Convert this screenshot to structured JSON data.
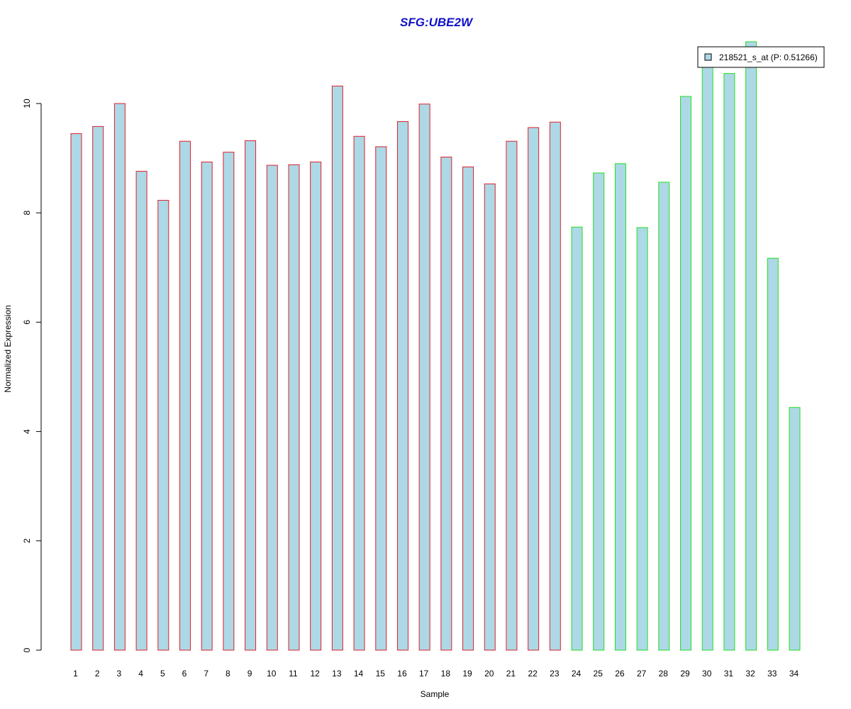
{
  "chart_data": {
    "type": "bar",
    "title": "SFG:UBE2W",
    "xlabel": "Sample",
    "ylabel": "Normalized Expression",
    "categories": [
      "1",
      "2",
      "3",
      "4",
      "5",
      "6",
      "7",
      "8",
      "9",
      "10",
      "11",
      "12",
      "13",
      "14",
      "15",
      "16",
      "17",
      "18",
      "19",
      "20",
      "21",
      "22",
      "23",
      "24",
      "25",
      "26",
      "27",
      "28",
      "29",
      "30",
      "31",
      "32",
      "33",
      "34"
    ],
    "series": [
      {
        "name": "218521_s_at (P: 0.51266)",
        "values": [
          9.45,
          9.58,
          10.0,
          8.76,
          8.23,
          9.31,
          8.93,
          9.11,
          9.32,
          8.87,
          8.88,
          8.93,
          10.32,
          9.4,
          9.21,
          9.67,
          9.99,
          9.02,
          8.84,
          8.53,
          9.31,
          9.56,
          9.66,
          7.74,
          8.73,
          8.9,
          7.73,
          8.56,
          10.13,
          10.86,
          10.55,
          11.13,
          7.17,
          4.44
        ]
      }
    ],
    "groups": [
      {
        "from": 1,
        "to": 23,
        "border_color": "#e0202a"
      },
      {
        "from": 24,
        "to": 34,
        "border_color": "#22e022"
      }
    ],
    "bar_fill": "#add8e6",
    "title_color": "#1010c8",
    "ylim": [
      0,
      11.13
    ],
    "yticks": [
      0,
      2,
      4,
      6,
      8,
      10
    ],
    "grid": false,
    "legend_position": "top-right"
  }
}
